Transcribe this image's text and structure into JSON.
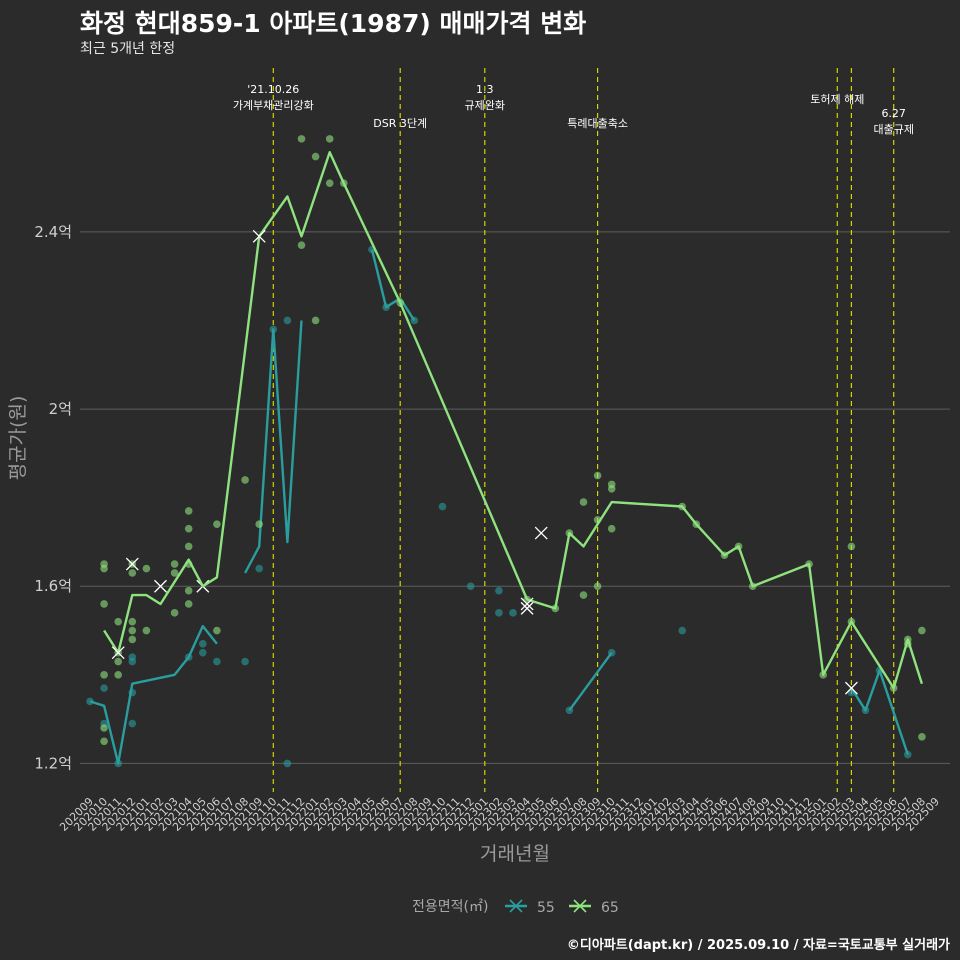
{
  "header": {
    "title": "화정 현대859-1 아파트(1987) 매매가격 변화",
    "subtitle": "최근 5개년 한정"
  },
  "caption": "©디아파트(dapt.kr) / 2025.09.10 / 자료=국토교통부 실거래가",
  "colors": {
    "background": "#2b2b2b",
    "grid": "#5e5e5e",
    "series_55": "#2a9d9e",
    "series_65": "#8fe37f",
    "event_line": "#d4d400"
  },
  "chart_data": {
    "type": "line",
    "xlabel": "거래년월",
    "ylabel": "평균가(원)",
    "x_ticks": [
      "202009",
      "202010",
      "202011",
      "202012",
      "202101",
      "202102",
      "202103",
      "202104",
      "202105",
      "202106",
      "202107",
      "202108",
      "202109",
      "202110",
      "202111",
      "202112",
      "202201",
      "202202",
      "202203",
      "202204",
      "202205",
      "202206",
      "202207",
      "202208",
      "202209",
      "202210",
      "202211",
      "202212",
      "202301",
      "202302",
      "202303",
      "202304",
      "202305",
      "202306",
      "202307",
      "202308",
      "202309",
      "202310",
      "202311",
      "202312",
      "202401",
      "202402",
      "202403",
      "202404",
      "202405",
      "202406",
      "202407",
      "202408",
      "202409",
      "202410",
      "202411",
      "202412",
      "202501",
      "202502",
      "202503",
      "202504",
      "202505",
      "202506",
      "202507",
      "202508",
      "202509"
    ],
    "y_ticks": [
      {
        "value": 1.2,
        "label": "1.2억"
      },
      {
        "value": 1.6,
        "label": "1.6억"
      },
      {
        "value": 2.0,
        "label": "2억"
      },
      {
        "value": 2.4,
        "label": "2.4억"
      }
    ],
    "ylim": [
      1.14,
      2.77
    ],
    "y_unit": "억",
    "legend": {
      "title": "전용면적(㎡)",
      "position": "bottom"
    },
    "events": [
      {
        "month": "202110",
        "lines": [
          "'21.10.26",
          "가계부채관리강화"
        ]
      },
      {
        "month": "202207",
        "lines": [
          "DSR 3단계"
        ]
      },
      {
        "month": "202301",
        "lines": [
          "1.3",
          "규제완화"
        ]
      },
      {
        "month": "202309",
        "lines": [
          "특례대출축소"
        ]
      },
      {
        "month": "202502",
        "lines": [
          "토허제 해제"
        ]
      },
      {
        "month": "202503",
        "lines": []
      },
      {
        "month": "202506",
        "lines": [
          "6.27",
          "대출규제"
        ]
      }
    ],
    "series": [
      {
        "name": "55",
        "color": "#2a9d9e",
        "line_segments": [
          [
            [
              "202009",
              1.34
            ],
            [
              "202010",
              1.33
            ],
            [
              "202011",
              1.2
            ],
            [
              "202012",
              1.38
            ],
            [
              "202103",
              1.4
            ],
            [
              "202104",
              1.44
            ],
            [
              "202105",
              1.51
            ],
            [
              "202106",
              1.47
            ]
          ],
          [
            [
              "202108",
              1.63
            ],
            [
              "202109",
              1.69
            ],
            [
              "202110",
              2.18
            ],
            [
              "202111",
              1.7
            ],
            [
              "202112",
              2.2
            ]
          ],
          [
            [
              "202205",
              2.36
            ],
            [
              "202206",
              2.23
            ],
            [
              "202207",
              2.25
            ],
            [
              "202208",
              2.2
            ]
          ],
          [
            [
              "202307",
              1.32
            ],
            [
              "202310",
              1.45
            ]
          ],
          [
            [
              "202503",
              1.37
            ],
            [
              "202504",
              1.32
            ],
            [
              "202505",
              1.41
            ],
            [
              "202507",
              1.22
            ]
          ]
        ],
        "points": [
          [
            "202009",
            1.34
          ],
          [
            "202010",
            1.29
          ],
          [
            "202010",
            1.37
          ],
          [
            "202011",
            1.2
          ],
          [
            "202012",
            1.29
          ],
          [
            "202012",
            1.36
          ],
          [
            "202012",
            1.43
          ],
          [
            "202012",
            1.44
          ],
          [
            "202104",
            1.44
          ],
          [
            "202105",
            1.45
          ],
          [
            "202105",
            1.47
          ],
          [
            "202106",
            1.43
          ],
          [
            "202108",
            1.43
          ],
          [
            "202109",
            1.64
          ],
          [
            "202110",
            2.18
          ],
          [
            "202111",
            2.2
          ],
          [
            "202111",
            1.2
          ],
          [
            "202205",
            2.36
          ],
          [
            "202206",
            2.23
          ],
          [
            "202208",
            2.2
          ],
          [
            "202210",
            1.78
          ],
          [
            "202212",
            1.6
          ],
          [
            "202302",
            1.59
          ],
          [
            "202302",
            1.54
          ],
          [
            "202303",
            1.54
          ],
          [
            "202307",
            1.32
          ],
          [
            "202310",
            1.45
          ],
          [
            "202403",
            1.5
          ],
          [
            "202503",
            1.36
          ],
          [
            "202504",
            1.32
          ],
          [
            "202505",
            1.41
          ],
          [
            "202507",
            1.22
          ]
        ],
        "markers": [
          [
            "202105",
            1.6
          ],
          [
            "202304",
            1.55
          ]
        ]
      },
      {
        "name": "65",
        "color": "#8fe37f",
        "line_segments": [
          [
            [
              "202010",
              1.5
            ],
            [
              "202011",
              1.45
            ],
            [
              "202012",
              1.58
            ],
            [
              "202101",
              1.58
            ],
            [
              "202102",
              1.56
            ],
            [
              "202104",
              1.66
            ],
            [
              "202105",
              1.6
            ],
            [
              "202106",
              1.62
            ],
            [
              "202109",
              2.39
            ],
            [
              "202111",
              2.48
            ],
            [
              "202112",
              2.39
            ],
            [
              "202202",
              2.58
            ],
            [
              "202203",
              2.51
            ],
            [
              "202207",
              2.24
            ],
            [
              "202304",
              1.57
            ],
            [
              "202306",
              1.55
            ],
            [
              "202307",
              1.72
            ],
            [
              "202308",
              1.69
            ],
            [
              "202310",
              1.79
            ],
            [
              "202403",
              1.78
            ],
            [
              "202404",
              1.74
            ],
            [
              "202406",
              1.67
            ],
            [
              "202407",
              1.69
            ],
            [
              "202408",
              1.6
            ],
            [
              "202412",
              1.65
            ],
            [
              "202501",
              1.4
            ],
            [
              "202503",
              1.52
            ],
            [
              "202506",
              1.37
            ],
            [
              "202507",
              1.48
            ],
            [
              "202508",
              1.38
            ]
          ]
        ],
        "points": [
          [
            "202010",
            1.65
          ],
          [
            "202010",
            1.64
          ],
          [
            "202010",
            1.56
          ],
          [
            "202010",
            1.4
          ],
          [
            "202010",
            1.28
          ],
          [
            "202010",
            1.25
          ],
          [
            "202011",
            1.52
          ],
          [
            "202011",
            1.45
          ],
          [
            "202011",
            1.43
          ],
          [
            "202011",
            1.4
          ],
          [
            "202012",
            1.65
          ],
          [
            "202012",
            1.63
          ],
          [
            "202012",
            1.52
          ],
          [
            "202012",
            1.5
          ],
          [
            "202012",
            1.48
          ],
          [
            "202101",
            1.64
          ],
          [
            "202101",
            1.5
          ],
          [
            "202103",
            1.65
          ],
          [
            "202103",
            1.63
          ],
          [
            "202103",
            1.54
          ],
          [
            "202104",
            1.77
          ],
          [
            "202104",
            1.73
          ],
          [
            "202104",
            1.69
          ],
          [
            "202104",
            1.65
          ],
          [
            "202104",
            1.59
          ],
          [
            "202104",
            1.56
          ],
          [
            "202106",
            1.74
          ],
          [
            "202106",
            1.5
          ],
          [
            "202108",
            1.84
          ],
          [
            "202109",
            1.74
          ],
          [
            "202112",
            2.61
          ],
          [
            "202112",
            2.37
          ],
          [
            "202201",
            2.57
          ],
          [
            "202201",
            2.2
          ],
          [
            "202202",
            2.61
          ],
          [
            "202202",
            2.51
          ],
          [
            "202203",
            2.51
          ],
          [
            "202207",
            2.24
          ],
          [
            "202304",
            1.57
          ],
          [
            "202306",
            1.55
          ],
          [
            "202307",
            1.72
          ],
          [
            "202308",
            1.79
          ],
          [
            "202308",
            1.58
          ],
          [
            "202309",
            1.85
          ],
          [
            "202309",
            1.75
          ],
          [
            "202309",
            1.6
          ],
          [
            "202310",
            1.82
          ],
          [
            "202310",
            1.83
          ],
          [
            "202310",
            1.73
          ],
          [
            "202403",
            1.78
          ],
          [
            "202404",
            1.74
          ],
          [
            "202406",
            1.67
          ],
          [
            "202407",
            1.69
          ],
          [
            "202408",
            1.6
          ],
          [
            "202412",
            1.65
          ],
          [
            "202501",
            1.4
          ],
          [
            "202503",
            1.69
          ],
          [
            "202503",
            1.52
          ],
          [
            "202506",
            1.37
          ],
          [
            "202507",
            1.48
          ],
          [
            "202507",
            1.47
          ],
          [
            "202508",
            1.5
          ],
          [
            "202508",
            1.26
          ]
        ],
        "markers": [
          [
            "202011",
            1.45
          ],
          [
            "202012",
            1.65
          ],
          [
            "202102",
            1.6
          ],
          [
            "202109",
            2.39
          ],
          [
            "202304",
            1.56
          ],
          [
            "202305",
            1.72
          ],
          [
            "202503",
            1.37
          ]
        ]
      }
    ]
  }
}
